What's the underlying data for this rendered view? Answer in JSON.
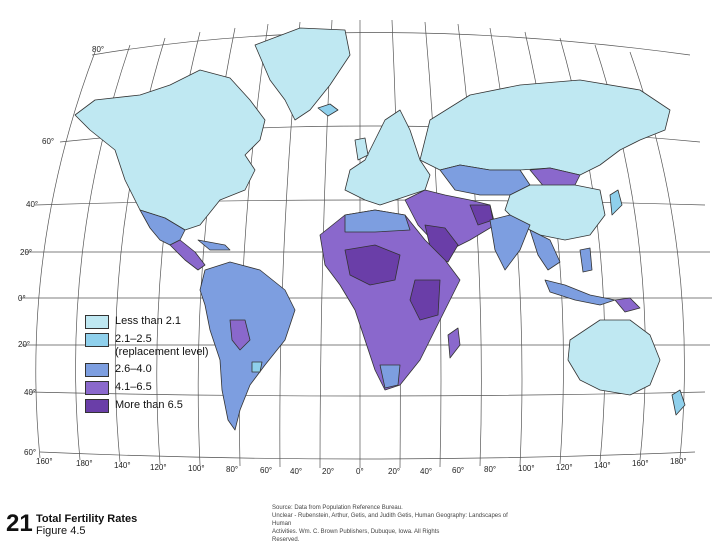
{
  "map": {
    "lat_labels": [
      "80°",
      "60°",
      "40°",
      "20°",
      "0°",
      "20°",
      "40°",
      "60°"
    ],
    "lon_labels": [
      "160°",
      "180°",
      "140°",
      "120°",
      "100°",
      "80°",
      "60°",
      "40°",
      "20°",
      "0°",
      "20°",
      "40°",
      "60°",
      "80°",
      "100°",
      "120°",
      "140°",
      "160°",
      "180°"
    ],
    "colors": {
      "ocean": "#ffffff",
      "less_than_2_1": "#bfe8f2",
      "2_1_to_2_5": "#8fd0ec",
      "2_6_to_4_0": "#7d9ee0",
      "4_1_to_6_5": "#8a68cc",
      "more_than_6_5": "#6a3ea8"
    }
  },
  "legend": {
    "items": [
      {
        "label": "Less than 2.1",
        "color": "#bfe8f2"
      },
      {
        "label": "2.1–2.5",
        "sub": "(replacement level)",
        "color": "#8fd0ec"
      },
      {
        "label": "2.6–4.0",
        "color": "#7d9ee0"
      },
      {
        "label": "4.1–6.5",
        "color": "#8a68cc"
      },
      {
        "label": "More than 6.5",
        "color": "#6a3ea8"
      }
    ]
  },
  "footer": {
    "number": "21",
    "title": "Total Fertility Rates",
    "subtitle": "Figure 4.5",
    "source_line1": "Source: Data from Population Reference Bureau.",
    "source_line2": "Unclear - Rubenstein, Arthur, Getis, and Judith Getis, Human Geography: Landscapes of Human",
    "source_line3": "Activities. Wm. C. Brown Publishers, Dubuque, Iowa. All Rights",
    "source_line4": "Reserved."
  }
}
